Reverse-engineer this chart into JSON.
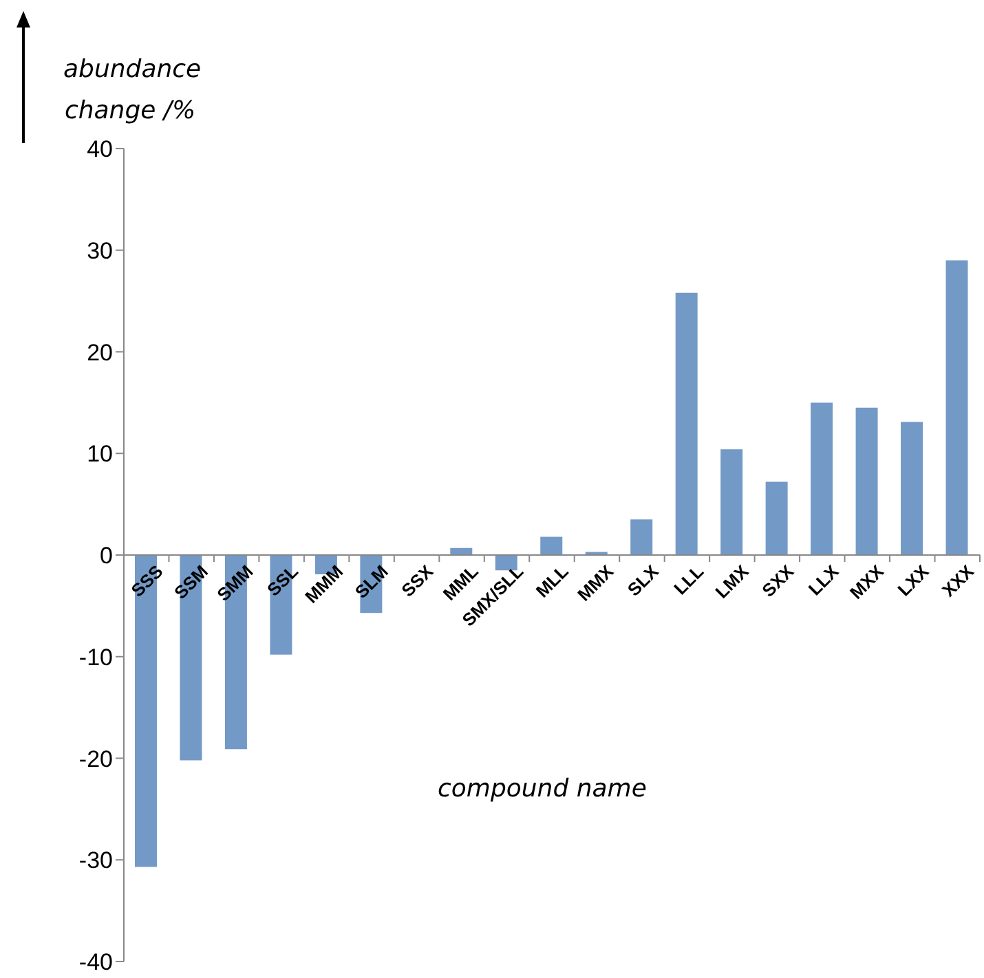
{
  "chart_data": {
    "type": "bar",
    "ylabel": "abundance change /%",
    "xlabel": "compound name",
    "categories": [
      "SSS",
      "SSM",
      "SMM",
      "SSL",
      "MMM",
      "SLM",
      "SSX",
      "MML",
      "SMX/SLL",
      "MLL",
      "MMX",
      "SLX",
      "LLL",
      "LMX",
      "SXX",
      "LLX",
      "MXX",
      "LXX",
      "XXX"
    ],
    "values": [
      -30.7,
      -20.2,
      -19.1,
      -9.8,
      -1.9,
      -5.7,
      0,
      0.7,
      -1.5,
      1.8,
      0.3,
      3.5,
      25.8,
      10.4,
      7.2,
      15,
      14.5,
      13.1,
      29
    ],
    "color": "#7399c6",
    "ylim": [
      -40,
      40
    ],
    "yticks": [
      -40,
      -30,
      -20,
      -10,
      0,
      10,
      20,
      30,
      40
    ],
    "grid": false
  }
}
